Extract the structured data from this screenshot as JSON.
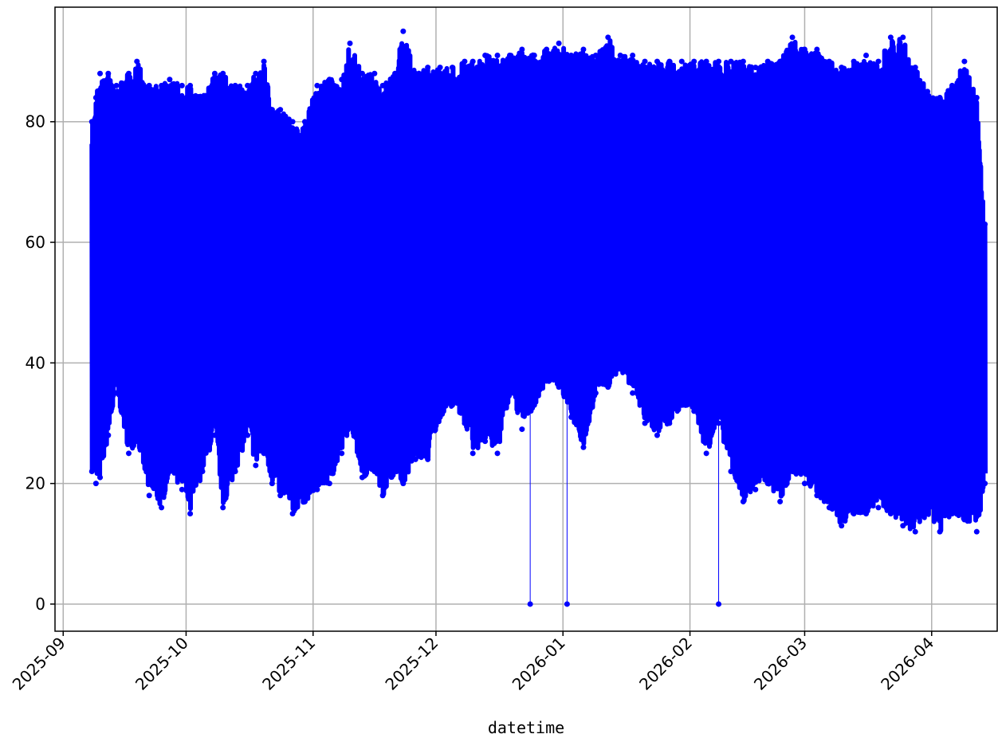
{
  "chart_data": {
    "type": "line",
    "xlabel": "datetime",
    "ylabel": "",
    "title": "",
    "grid": true,
    "legend": "none",
    "xlim": [
      "2025-08-30",
      "2026-04-17"
    ],
    "ylim": [
      -4.5,
      99
    ],
    "x_ticks": [
      "2025-09",
      "2025-10",
      "2025-11",
      "2025-12",
      "2026-01",
      "2026-02",
      "2026-03",
      "2026-04"
    ],
    "y_ticks": [
      0,
      20,
      40,
      60,
      80
    ],
    "colors": {
      "series": "#0000ff",
      "grid": "#b0b0b0",
      "axes": "#000000"
    },
    "series": [
      {
        "marker": "circle",
        "style": "dense oscillating readings; envelope given as [date, min, max]",
        "envelope": [
          [
            "2025-09-08",
            22,
            80
          ],
          [
            "2025-09-09",
            20,
            84
          ],
          [
            "2025-09-10",
            21,
            88
          ],
          [
            "2025-09-12",
            28,
            88
          ],
          [
            "2025-09-14",
            35,
            86
          ],
          [
            "2025-09-17",
            25,
            88
          ],
          [
            "2025-09-19",
            27,
            90
          ],
          [
            "2025-09-22",
            18,
            86
          ],
          [
            "2025-09-25",
            16,
            86
          ],
          [
            "2025-09-27",
            22,
            87
          ],
          [
            "2025-09-30",
            19,
            86
          ],
          [
            "2025-10-02",
            15,
            86
          ],
          [
            "2025-10-05",
            22,
            84
          ],
          [
            "2025-10-08",
            28,
            88
          ],
          [
            "2025-10-10",
            16,
            88
          ],
          [
            "2025-10-13",
            22,
            86
          ],
          [
            "2025-10-16",
            28,
            86
          ],
          [
            "2025-10-18",
            23,
            88
          ],
          [
            "2025-10-20",
            25,
            90
          ],
          [
            "2025-10-22",
            20,
            82
          ],
          [
            "2025-10-24",
            18,
            82
          ],
          [
            "2025-10-27",
            15,
            80
          ],
          [
            "2025-10-30",
            17,
            80
          ],
          [
            "2025-11-02",
            19,
            86
          ],
          [
            "2025-11-05",
            20,
            87
          ],
          [
            "2025-11-08",
            25,
            87
          ],
          [
            "2025-11-10",
            30,
            93
          ],
          [
            "2025-11-13",
            21,
            88
          ],
          [
            "2025-11-16",
            22,
            88
          ],
          [
            "2025-11-18",
            18,
            86
          ],
          [
            "2025-11-21",
            22,
            88
          ],
          [
            "2025-11-23",
            20,
            95
          ],
          [
            "2025-11-26",
            24,
            88
          ],
          [
            "2025-11-29",
            24,
            89
          ],
          [
            "2025-12-02",
            31,
            89
          ],
          [
            "2025-12-05",
            33,
            89
          ],
          [
            "2025-12-08",
            30,
            90
          ],
          [
            "2025-12-10",
            25,
            90
          ],
          [
            "2025-12-13",
            27,
            91
          ],
          [
            "2025-12-16",
            25,
            91
          ],
          [
            "2025-12-19",
            35,
            91
          ],
          [
            "2025-12-22",
            29,
            92
          ],
          [
            "2025-12-25",
            33,
            91
          ],
          [
            "2025-12-28",
            37,
            92
          ],
          [
            "2025-12-31",
            36,
            93
          ],
          [
            "2026-01-03",
            31,
            91
          ],
          [
            "2026-01-06",
            26,
            92
          ],
          [
            "2026-01-09",
            35,
            91
          ],
          [
            "2026-01-12",
            36,
            94
          ],
          [
            "2026-01-15",
            39,
            91
          ],
          [
            "2026-01-18",
            35,
            91
          ],
          [
            "2026-01-21",
            30,
            90
          ],
          [
            "2026-01-24",
            28,
            90
          ],
          [
            "2026-01-27",
            30,
            90
          ],
          [
            "2026-01-30",
            33,
            90
          ],
          [
            "2026-02-02",
            32,
            90
          ],
          [
            "2026-02-05",
            25,
            90
          ],
          [
            "2026-02-08",
            30,
            90
          ],
          [
            "2026-02-11",
            22,
            90
          ],
          [
            "2026-02-14",
            17,
            90
          ],
          [
            "2026-02-17",
            19,
            89
          ],
          [
            "2026-02-20",
            20,
            90
          ],
          [
            "2026-02-23",
            17,
            90
          ],
          [
            "2026-02-26",
            22,
            94
          ],
          [
            "2026-03-01",
            20,
            92
          ],
          [
            "2026-03-04",
            18,
            92
          ],
          [
            "2026-03-07",
            16,
            90
          ],
          [
            "2026-03-10",
            13,
            89
          ],
          [
            "2026-03-13",
            15,
            90
          ],
          [
            "2026-03-16",
            15,
            91
          ],
          [
            "2026-03-19",
            16,
            90
          ],
          [
            "2026-03-22",
            15,
            94
          ],
          [
            "2026-03-25",
            13,
            94
          ],
          [
            "2026-03-28",
            12,
            89
          ],
          [
            "2026-03-31",
            15,
            85
          ],
          [
            "2026-04-03",
            12,
            84
          ],
          [
            "2026-04-06",
            15,
            86
          ],
          [
            "2026-04-09",
            14,
            90
          ],
          [
            "2026-04-12",
            12,
            84
          ],
          [
            "2026-04-14",
            20,
            63
          ]
        ],
        "outliers": [
          [
            "2025-12-24",
            0
          ],
          [
            "2026-01-02",
            0
          ],
          [
            "2026-02-08",
            0
          ]
        ]
      }
    ]
  }
}
